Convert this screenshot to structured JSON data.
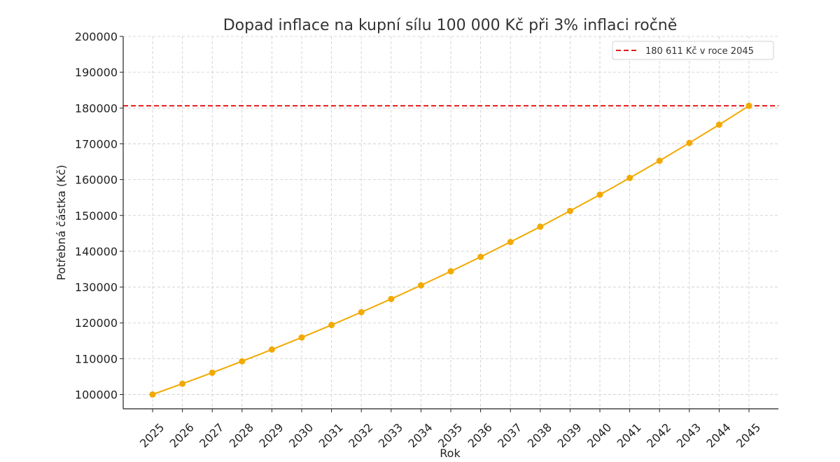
{
  "chart_data": {
    "type": "line",
    "title": "Dopad inflace na kupní sílu 100 000 Kč při 3% inflaci ročně",
    "xlabel": "Rok",
    "ylabel": "Potřebná částka (Kč)",
    "x": [
      "2025",
      "2026",
      "2027",
      "2028",
      "2029",
      "2030",
      "2031",
      "2032",
      "2033",
      "2034",
      "2035",
      "2036",
      "2037",
      "2038",
      "2039",
      "2040",
      "2041",
      "2042",
      "2043",
      "2044",
      "2045"
    ],
    "series": [
      {
        "color": "#f2a900",
        "values": [
          100000,
          103000,
          106090,
          109273,
          112551,
          115927,
          119405,
          122987,
          126677,
          130477,
          134392,
          138423,
          142576,
          146853,
          151259,
          155797,
          160471,
          165285,
          170243,
          175351,
          180611
        ]
      }
    ],
    "reference_line": {
      "y": 180611,
      "color": "#e31a1c",
      "label": "180 611 Kč v roce 2045"
    },
    "ylim": [
      96000,
      200000
    ],
    "yticks": [
      100000,
      110000,
      120000,
      130000,
      140000,
      150000,
      160000,
      170000,
      180000,
      190000,
      200000
    ],
    "grid": true,
    "legend_position": "top-right"
  }
}
